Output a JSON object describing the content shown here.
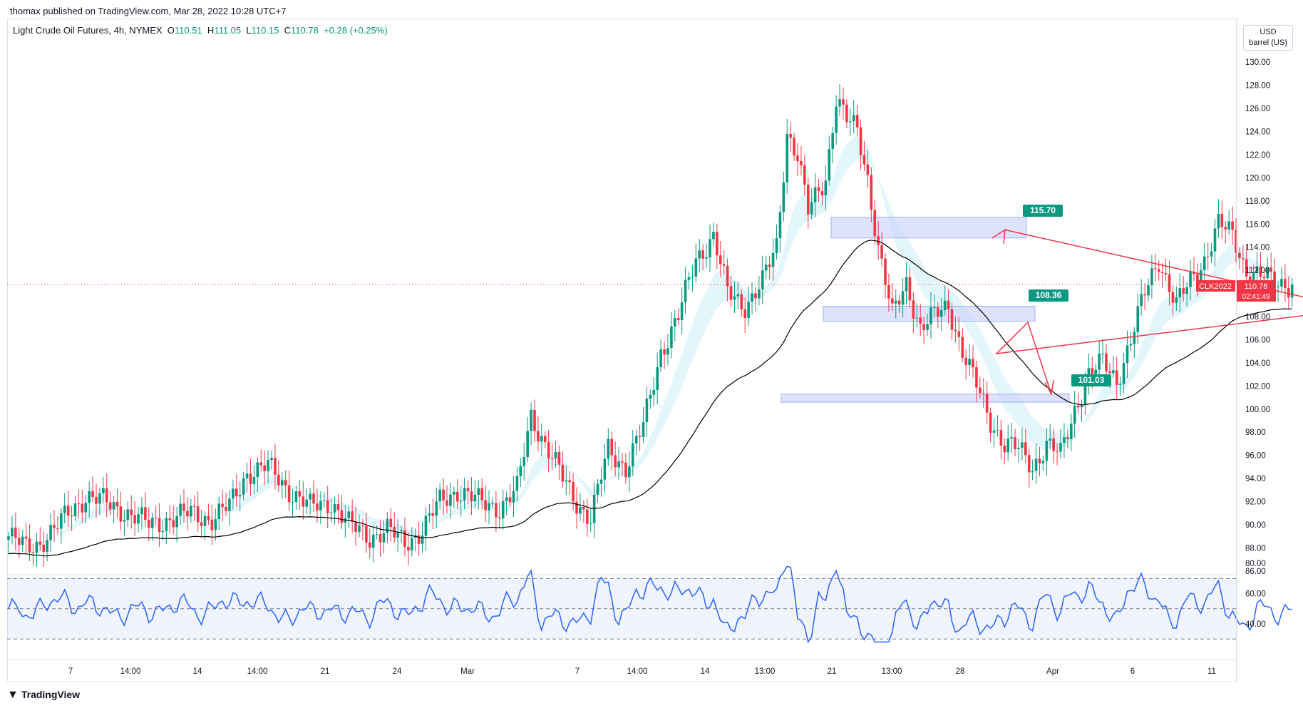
{
  "header": {
    "published": "thomax published on TradingView.com, Mar 28, 2022 10:28 UTC+7"
  },
  "legend": {
    "symbol": "Light Crude Oil Futures, 4h, NYMEX",
    "o_label": "O",
    "o": "110.51",
    "h_label": "H",
    "h": "111.05",
    "l_label": "L",
    "l": "110.15",
    "c_label": "C",
    "c": "110.78",
    "change": "+0.28 (+0.25%)"
  },
  "unit": {
    "currency": "USD",
    "unit": "barrel (US)"
  },
  "price_badge": {
    "ticker": "CLK2022",
    "price": "110.78",
    "countdown": "02:41:49"
  },
  "footer": {
    "brand": "TradingView"
  },
  "colors": {
    "up": "#089981",
    "down": "#f23645",
    "rsi": "#2962ff",
    "zone": "#c8d0fa",
    "ema": "#000000",
    "cloud": "#e3f6fc"
  },
  "chart_data": {
    "type": "candlestick",
    "price_axis": {
      "min": 86,
      "max": 130,
      "ticks": [
        "130.00",
        "128.00",
        "126.00",
        "124.00",
        "122.00",
        "120.00",
        "118.00",
        "116.00",
        "114.00",
        "112.00",
        "110.00",
        "108.00",
        "106.00",
        "104.00",
        "102.00",
        "100.00",
        "98.00",
        "96.00",
        "94.00",
        "92.00",
        "90.00",
        "88.00",
        "86.00"
      ]
    },
    "rsi_axis": {
      "ticks": [
        "80.00",
        "60.00",
        "40.00"
      ],
      "upper": 70,
      "lower": 30,
      "mid": 50
    },
    "x_labels": [
      "7",
      "14:00",
      "14",
      "14:00",
      "21",
      "24",
      "Mar",
      "7",
      "14:00",
      "14",
      "13:00",
      "21",
      "13:00",
      "28",
      "Apr",
      "6",
      "11"
    ],
    "last_price": 110.78,
    "annotations": [
      {
        "label": "115.70",
        "zone": [
          114.8,
          116.6
        ]
      },
      {
        "label": "108.36",
        "zone": [
          107.6,
          108.9
        ]
      },
      {
        "label": "101.03",
        "zone": [
          100.6,
          101.3
        ]
      }
    ],
    "anchors": [
      [
        0,
        89
      ],
      [
        5,
        88
      ],
      [
        9,
        88.5
      ],
      [
        13,
        89.5
      ],
      [
        17,
        91
      ],
      [
        22,
        92.5
      ],
      [
        27,
        92
      ],
      [
        33,
        91.2
      ],
      [
        40,
        90
      ],
      [
        46,
        90.5
      ],
      [
        52,
        91
      ],
      [
        58,
        90.5
      ],
      [
        63,
        91.6
      ],
      [
        68,
        94.5
      ],
      [
        74,
        95
      ],
      [
        80,
        93
      ],
      [
        86,
        91.5
      ],
      [
        92,
        92
      ],
      [
        97,
        90
      ],
      [
        103,
        89
      ],
      [
        108,
        89.5
      ],
      [
        113,
        88.5
      ],
      [
        118,
        89.5
      ],
      [
        123,
        92
      ],
      [
        128,
        93
      ],
      [
        134,
        92
      ],
      [
        140,
        91.5
      ],
      [
        145,
        93
      ],
      [
        149,
        99.5
      ],
      [
        153,
        97
      ],
      [
        158,
        94
      ],
      [
        162,
        92
      ],
      [
        166,
        90.5
      ],
      [
        171,
        96.5
      ],
      [
        176,
        95
      ],
      [
        181,
        98.5
      ],
      [
        186,
        105
      ],
      [
        191,
        108
      ],
      [
        196,
        113
      ],
      [
        201,
        115
      ],
      [
        205,
        110
      ],
      [
        210,
        109
      ],
      [
        215,
        111
      ],
      [
        219,
        114
      ],
      [
        222,
        124
      ],
      [
        225,
        122
      ],
      [
        228,
        117
      ],
      [
        233,
        120
      ],
      [
        236,
        127
      ],
      [
        239,
        125
      ],
      [
        242,
        124
      ],
      [
        245,
        120
      ],
      [
        248,
        114
      ],
      [
        252,
        108
      ],
      [
        256,
        111
      ],
      [
        260,
        107
      ],
      [
        264,
        108
      ],
      [
        268,
        109
      ],
      [
        272,
        105
      ],
      [
        276,
        102
      ],
      [
        280,
        99
      ],
      [
        284,
        97
      ],
      [
        288,
        96.5
      ],
      [
        292,
        95
      ],
      [
        296,
        97
      ],
      [
        300,
        96
      ],
      [
        304,
        100
      ],
      [
        308,
        103
      ],
      [
        312,
        104
      ],
      [
        316,
        102.5
      ],
      [
        320,
        106
      ],
      [
        324,
        110
      ],
      [
        328,
        113
      ],
      [
        333,
        109
      ],
      [
        337,
        111
      ],
      [
        341,
        113
      ],
      [
        345,
        116
      ],
      [
        349,
        115
      ],
      [
        353,
        112
      ],
      [
        357,
        111.5
      ],
      [
        361,
        111
      ],
      [
        366,
        110.8
      ]
    ]
  }
}
